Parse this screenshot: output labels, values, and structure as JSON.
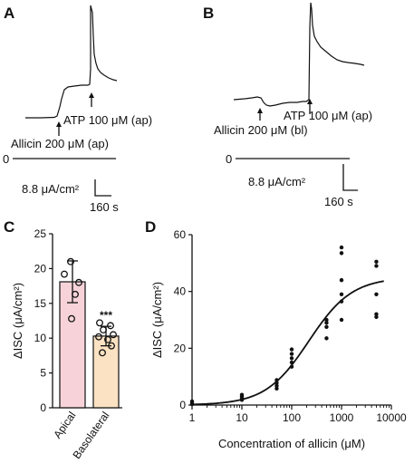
{
  "panels": {
    "A": {
      "label": "A",
      "annotations": {
        "allicin": "Allicin 200 μM (ap)",
        "atp": "ATP 100 μM (ap)"
      },
      "baseline_label": "0",
      "scale_y": "8.8 μA/cm²",
      "scale_x": "160 s"
    },
    "B": {
      "label": "B",
      "annotations": {
        "allicin": "Allicin 200 μM (bl)",
        "atp": "ATP 100 μM (ap)"
      },
      "baseline_label": "0",
      "scale_y": "8.8 μA/cm²",
      "scale_x": "160 s"
    },
    "C": {
      "label": "C",
      "ylabel": "ΔISC (μA/cm²)",
      "significance": "***"
    },
    "D": {
      "label": "D",
      "ylabel": "ΔISC (μA/cm²)",
      "xlabel": "Concentration of allicin (μM)"
    }
  },
  "colors": {
    "apical_bar": "#f7d3d9",
    "basolateral_bar": "#fbe2c2",
    "trace": "#111111"
  },
  "chart_data": [
    {
      "panel": "C",
      "type": "bar",
      "categories": [
        "Apical",
        "Basolateral"
      ],
      "values": [
        18.1,
        10.3
      ],
      "error": [
        3.0,
        1.4
      ],
      "points": [
        [
          21.0,
          19.2,
          18.0,
          16.3,
          12.8
        ],
        [
          12.2,
          11.8,
          11.2,
          10.5,
          10.2,
          9.8,
          8.9,
          7.9
        ]
      ],
      "ylim": [
        0,
        25
      ],
      "yticks": [
        0,
        5,
        10,
        15,
        20,
        25
      ],
      "ylabel": "ΔISC (μA/cm²)",
      "annotation": "***"
    },
    {
      "panel": "D",
      "type": "scatter",
      "xscale": "log",
      "xlim": [
        1,
        10000
      ],
      "ylim": [
        0,
        60
      ],
      "xticks": [
        1,
        10,
        100,
        1000,
        10000
      ],
      "yticks": [
        0,
        20,
        40,
        60
      ],
      "xlabel": "Concentration of allicin (μM)",
      "ylabel": "ΔISC (μA/cm²)",
      "points": [
        [
          1,
          0.3
        ],
        [
          1,
          0.8
        ],
        [
          1,
          1.3
        ],
        [
          10,
          1.8
        ],
        [
          10,
          2.4
        ],
        [
          10,
          3.0
        ],
        [
          10,
          3.6
        ],
        [
          50,
          5.8
        ],
        [
          50,
          6.8
        ],
        [
          50,
          7.8
        ],
        [
          50,
          8.8
        ],
        [
          100,
          13.5
        ],
        [
          100,
          15.0
        ],
        [
          100,
          16.5
        ],
        [
          100,
          18.0
        ],
        [
          100,
          19.6
        ],
        [
          500,
          23.5
        ],
        [
          500,
          27.5
        ],
        [
          500,
          29.0
        ],
        [
          500,
          30.0
        ],
        [
          1000,
          30.0
        ],
        [
          1000,
          36.5
        ],
        [
          1000,
          39.0
        ],
        [
          1000,
          44.0
        ],
        [
          1000,
          53.5
        ],
        [
          1000,
          55.5
        ],
        [
          5000,
          31.0
        ],
        [
          5000,
          32.0
        ],
        [
          5000,
          39.0
        ],
        [
          5000,
          49.0
        ],
        [
          5000,
          50.5
        ]
      ],
      "fit": {
        "model": "hill",
        "bottom": 0,
        "top": 45,
        "ec50": 220,
        "hill": 1.0
      }
    }
  ]
}
